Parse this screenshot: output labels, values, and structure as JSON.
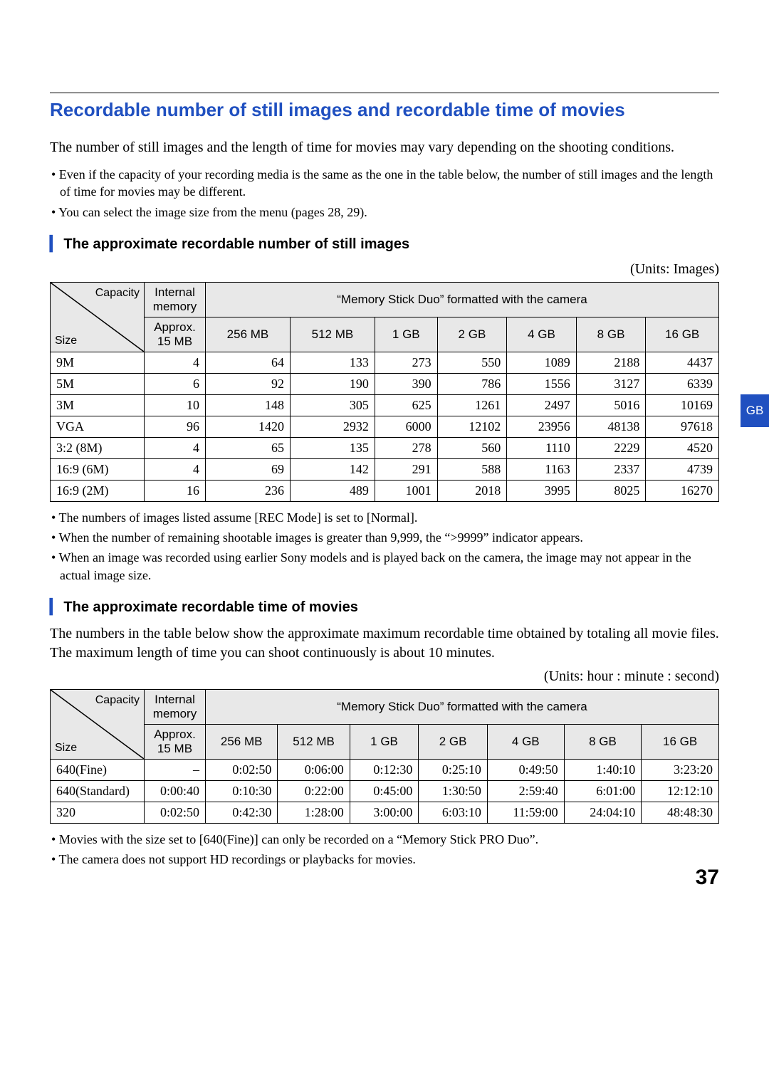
{
  "colors": {
    "accent": "#2050c0",
    "header_bg": "#e8e8e8",
    "text": "#000000",
    "page_bg": "#ffffff"
  },
  "page_number": "37",
  "side_tab": "GB",
  "title": "Recordable number of still images and recordable time of movies",
  "intro": "The number of still images and the length of time for movies may vary depending on the shooting conditions.",
  "top_bullets": [
    "Even if the capacity of your recording media is the same as the one in the table below, the number of still images and the length of time for movies may be different.",
    "You can select the image size from the menu (pages 28, 29)."
  ],
  "section1": {
    "heading": "The approximate recordable number of still images",
    "units": "(Units: Images)",
    "diag": {
      "capacity": "Capacity",
      "size": "Size"
    },
    "header_group1": "Internal memory",
    "header_group2": "“Memory Stick Duo” formatted with the camera",
    "cap_cols": [
      "Approx. 15 MB",
      "256 MB",
      "512 MB",
      "1 GB",
      "2 GB",
      "4 GB",
      "8 GB",
      "16 GB"
    ],
    "rows": [
      {
        "label": "9M",
        "vals": [
          "4",
          "64",
          "133",
          "273",
          "550",
          "1089",
          "2188",
          "4437"
        ]
      },
      {
        "label": "5M",
        "vals": [
          "6",
          "92",
          "190",
          "390",
          "786",
          "1556",
          "3127",
          "6339"
        ]
      },
      {
        "label": "3M",
        "vals": [
          "10",
          "148",
          "305",
          "625",
          "1261",
          "2497",
          "5016",
          "10169"
        ]
      },
      {
        "label": "VGA",
        "vals": [
          "96",
          "1420",
          "2932",
          "6000",
          "12102",
          "23956",
          "48138",
          "97618"
        ]
      },
      {
        "label": "3:2 (8M)",
        "vals": [
          "4",
          "65",
          "135",
          "278",
          "560",
          "1110",
          "2229",
          "4520"
        ]
      },
      {
        "label": "16:9 (6M)",
        "vals": [
          "4",
          "69",
          "142",
          "291",
          "588",
          "1163",
          "2337",
          "4739"
        ]
      },
      {
        "label": "16:9 (2M)",
        "vals": [
          "16",
          "236",
          "489",
          "1001",
          "2018",
          "3995",
          "8025",
          "16270"
        ]
      }
    ],
    "notes": [
      "The numbers of images listed assume [REC Mode] is set to [Normal].",
      "When the number of remaining shootable images is greater than 9,999, the “>9999” indicator appears.",
      "When an image was recorded using earlier Sony models and is played back on the camera, the image may not appear in the actual image size."
    ]
  },
  "section2": {
    "heading": "The approximate recordable time of movies",
    "body": "The numbers in the table below show the approximate maximum recordable time obtained by totaling all movie files. The maximum length of time you can shoot continuously is about 10 minutes.",
    "units": "(Units: hour : minute : second)",
    "diag": {
      "capacity": "Capacity",
      "size": "Size"
    },
    "header_group1": "Internal memory",
    "header_group2": "“Memory Stick Duo” formatted with the camera",
    "cap_cols": [
      "Approx. 15 MB",
      "256 MB",
      "512 MB",
      "1 GB",
      "2 GB",
      "4 GB",
      "8 GB",
      "16 GB"
    ],
    "rows": [
      {
        "label": "640(Fine)",
        "vals": [
          "–",
          "0:02:50",
          "0:06:00",
          "0:12:30",
          "0:25:10",
          "0:49:50",
          "1:40:10",
          "3:23:20"
        ]
      },
      {
        "label": "640(Standard)",
        "vals": [
          "0:00:40",
          "0:10:30",
          "0:22:00",
          "0:45:00",
          "1:30:50",
          "2:59:40",
          "6:01:00",
          "12:12:10"
        ]
      },
      {
        "label": "320",
        "vals": [
          "0:02:50",
          "0:42:30",
          "1:28:00",
          "3:00:00",
          "6:03:10",
          "11:59:00",
          "24:04:10",
          "48:48:30"
        ]
      }
    ],
    "notes": [
      "Movies with the size set to [640(Fine)] can only be recorded on a “Memory Stick PRO Duo”.",
      "The camera does not support HD recordings or playbacks for movies."
    ]
  }
}
